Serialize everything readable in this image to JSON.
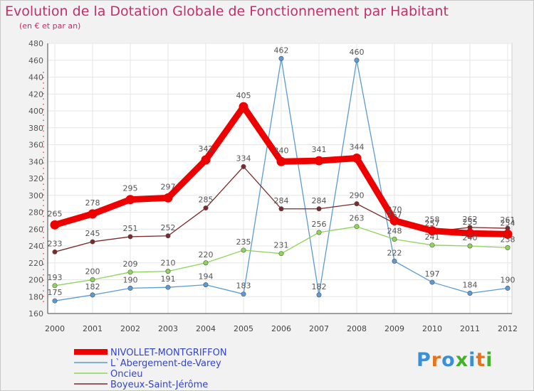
{
  "title": "Evolution de la Dotation Globale de Fonctionnement par Habitant",
  "subtitle": "(en € et par an)",
  "logo": {
    "text": "Proxiti",
    "colors": [
      "#3a8fd9",
      "#e8731a",
      "#3a8fd9",
      "#43b02a",
      "#3a8fd9",
      "#e8731a",
      "#43b02a"
    ]
  },
  "chart_data": {
    "type": "line",
    "title": "Evolution de la Dotation Globale de Fonctionnement par Habitant",
    "xlabel": "",
    "ylabel": "(en € et par an)",
    "ylim": [
      160,
      480
    ],
    "yticks": [
      160,
      180,
      200,
      220,
      240,
      260,
      280,
      300,
      320,
      340,
      360,
      380,
      400,
      420,
      440,
      460,
      480
    ],
    "categories": [
      "2000",
      "2001",
      "2002",
      "2003",
      "2004",
      "2005",
      "2006",
      "2007",
      "2008",
      "2009",
      "2010",
      "2011",
      "2012"
    ],
    "legend_position": "bottom-left",
    "series": [
      {
        "name": "NIVOLLET-MONTGRIFFON",
        "color": "#ee0000",
        "emphasis": true,
        "values": [
          265,
          278,
          295,
          297,
          342,
          405,
          340,
          341,
          344,
          270,
          258,
          255,
          254
        ]
      },
      {
        "name": "L`Abergement-de-Varey",
        "color": "#5b9bd5",
        "emphasis": false,
        "values": [
          175,
          182,
          190,
          191,
          194,
          183,
          462,
          182,
          460,
          222,
          197,
          184,
          190
        ]
      },
      {
        "name": "Oncieu",
        "color": "#8fd45a",
        "emphasis": false,
        "values": [
          193,
          200,
          209,
          210,
          220,
          235,
          231,
          256,
          263,
          248,
          241,
          240,
          238
        ]
      },
      {
        "name": "Boyeux-Saint-Jérôme",
        "color": "#7a2a2a",
        "emphasis": false,
        "values": [
          233,
          245,
          251,
          252,
          285,
          334,
          284,
          284,
          290,
          267,
          257,
          262,
          261
        ]
      }
    ]
  }
}
